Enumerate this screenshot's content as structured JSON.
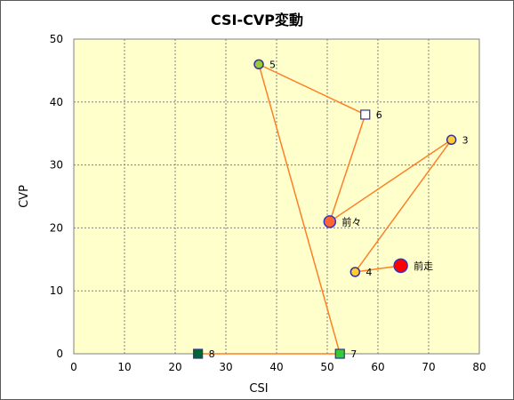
{
  "chart_data": {
    "type": "scatter",
    "title": "CSI-CVP変動",
    "xlabel": "CSI",
    "ylabel": "CVP",
    "xlim": [
      0,
      80
    ],
    "ylim": [
      0,
      50
    ],
    "xticks": [
      0,
      10,
      20,
      30,
      40,
      50,
      60,
      70,
      80
    ],
    "yticks": [
      0,
      10,
      20,
      30,
      40,
      50
    ],
    "grid": true,
    "plot_background": "#ffffcc",
    "line_color": "#ff7f27",
    "points": [
      {
        "label": "8",
        "x": 24.5,
        "y": 0,
        "marker": "square",
        "fill": "#006633",
        "stroke": "#333399",
        "size": "small"
      },
      {
        "label": "7",
        "x": 52.5,
        "y": 0,
        "marker": "square",
        "fill": "#33cc33",
        "stroke": "#333399",
        "size": "small"
      },
      {
        "label": "5",
        "x": 36.5,
        "y": 46,
        "marker": "circle",
        "fill": "#99cc33",
        "stroke": "#333399",
        "size": "small"
      },
      {
        "label": "6",
        "x": 57.5,
        "y": 38,
        "marker": "square",
        "fill": "#ffffff",
        "stroke": "#333399",
        "size": "small"
      },
      {
        "label": "前々",
        "x": 50.5,
        "y": 21,
        "marker": "circle",
        "fill": "#ff6633",
        "stroke": "#3333cc",
        "size": "medium"
      },
      {
        "label": "3",
        "x": 74.5,
        "y": 34,
        "marker": "circle",
        "fill": "#ffcc33",
        "stroke": "#333399",
        "size": "small"
      },
      {
        "label": "4",
        "x": 55.5,
        "y": 13,
        "marker": "circle",
        "fill": "#ffcc33",
        "stroke": "#333399",
        "size": "small"
      },
      {
        "label": "前走",
        "x": 64.5,
        "y": 14,
        "marker": "circle",
        "fill": "#ff0000",
        "stroke": "#3333cc",
        "size": "large"
      }
    ]
  }
}
